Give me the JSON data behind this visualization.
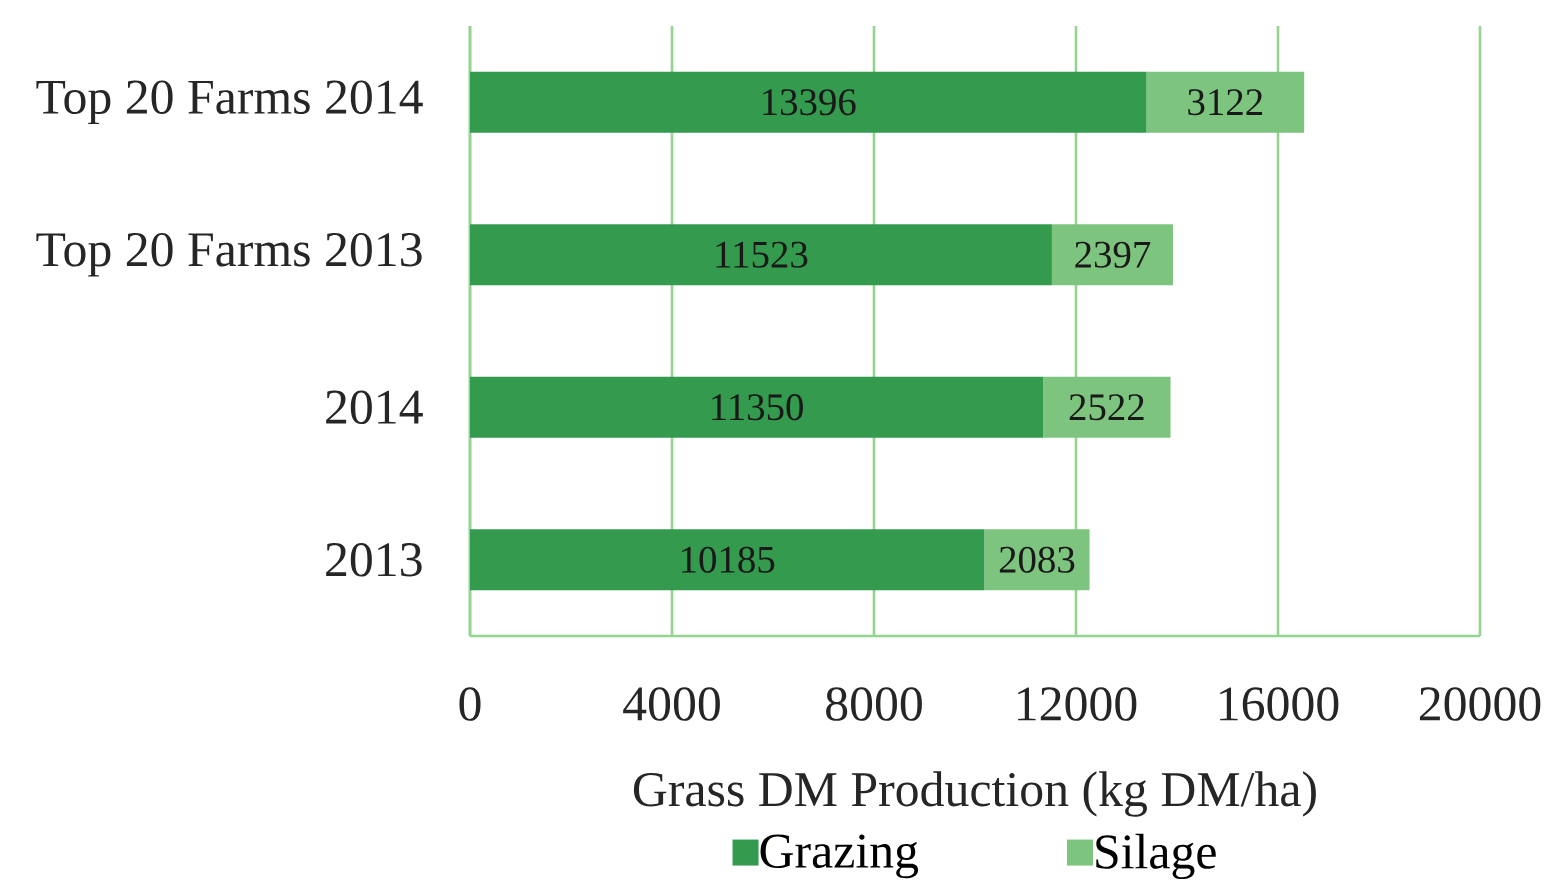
{
  "chart_data": {
    "type": "bar",
    "orientation": "horizontal",
    "stacked": true,
    "categories": [
      "Top 20 Farms 2014",
      "Top 20 Farms 2013",
      "2014",
      "2013"
    ],
    "series": [
      {
        "name": "Grazing",
        "color": "#349a4d",
        "values": [
          13396,
          11523,
          11350,
          10185
        ]
      },
      {
        "name": "Silage",
        "color": "#7dc47f",
        "values": [
          3122,
          2397,
          2522,
          2083
        ]
      }
    ],
    "xlabel": "Grass DM Production (kg DM/ha)",
    "xlim": [
      0,
      20000
    ],
    "xticks": [
      0,
      4000,
      8000,
      12000,
      16000,
      20000
    ],
    "grid": "x",
    "legend": "bottom",
    "data_labels": true
  }
}
